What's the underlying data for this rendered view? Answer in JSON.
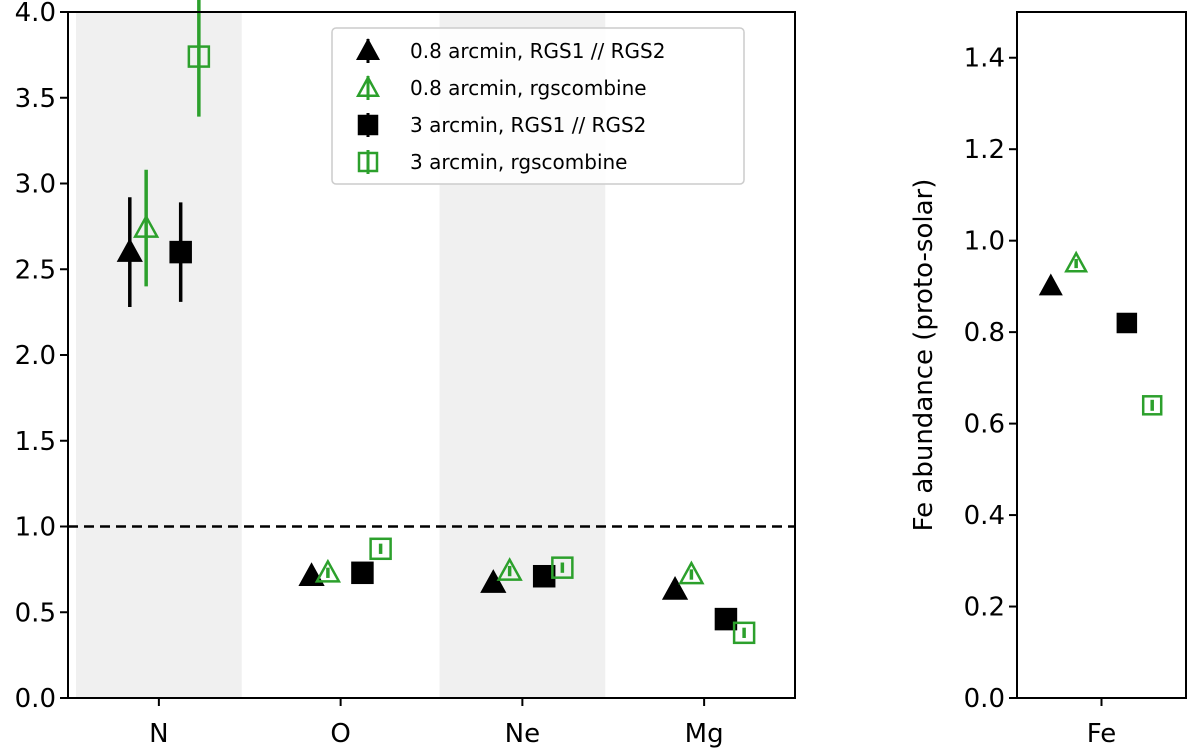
{
  "chart_data": [
    {
      "type": "scatter",
      "title": "",
      "xlabel": "",
      "ylabel": "",
      "categories": [
        "N",
        "O",
        "Ne",
        "Mg"
      ],
      "ylim": [
        0,
        4
      ],
      "yticks": [
        "0.0",
        "0.5",
        "1.0",
        "1.5",
        "2.0",
        "2.5",
        "3.0",
        "3.5",
        "4.0"
      ],
      "reference_line": 1.0,
      "shaded_categories": [
        "N",
        "Ne"
      ],
      "legend_position": "top-right",
      "series": [
        {
          "name": "0.8 arcmin, RGS1 // RGS2",
          "marker": "triangle",
          "filled": true,
          "color": "#000000",
          "values": [
            2.6,
            0.71,
            0.67,
            0.63
          ],
          "errors": [
            0.32,
            0.02,
            0.02,
            0.02
          ]
        },
        {
          "name": "0.8 arcmin, rgscombine",
          "marker": "triangle",
          "filled": false,
          "color": "#2ca02c",
          "values": [
            2.74,
            0.73,
            0.74,
            0.72
          ],
          "errors": [
            0.34,
            0.03,
            0.03,
            0.03
          ]
        },
        {
          "name": "3 arcmin, RGS1 // RGS2",
          "marker": "square",
          "filled": true,
          "color": "#000000",
          "values": [
            2.6,
            0.73,
            0.71,
            0.46
          ],
          "errors": [
            0.29,
            0.02,
            0.02,
            0.02
          ]
        },
        {
          "name": "3 arcmin, rgscombine",
          "marker": "square",
          "filled": false,
          "color": "#2ca02c",
          "values": [
            3.74,
            0.87,
            0.76,
            0.38
          ],
          "errors": [
            0.35,
            0.03,
            0.03,
            0.03
          ]
        }
      ]
    },
    {
      "type": "scatter",
      "title": "",
      "xlabel": "",
      "ylabel": "Fe abundance (proto-solar)",
      "categories": [
        "Fe"
      ],
      "ylim": [
        0,
        1.5
      ],
      "yticks": [
        "0.0",
        "0.2",
        "0.4",
        "0.6",
        "0.8",
        "1.0",
        "1.2",
        "1.4"
      ],
      "series": [
        {
          "name": "0.8 arcmin, RGS1 // RGS2",
          "marker": "triangle",
          "filled": true,
          "color": "#000000",
          "values": [
            0.9
          ],
          "errors": [
            0.005
          ]
        },
        {
          "name": "0.8 arcmin, rgscombine",
          "marker": "triangle",
          "filled": false,
          "color": "#2ca02c",
          "values": [
            0.95
          ],
          "errors": [
            0.01
          ]
        },
        {
          "name": "3 arcmin, RGS1 // RGS2",
          "marker": "square",
          "filled": true,
          "color": "#000000",
          "values": [
            0.82
          ],
          "errors": [
            0.012
          ]
        },
        {
          "name": "3 arcmin, rgscombine",
          "marker": "square",
          "filled": false,
          "color": "#2ca02c",
          "values": [
            0.64
          ],
          "errors": [
            0.012
          ]
        }
      ]
    }
  ]
}
